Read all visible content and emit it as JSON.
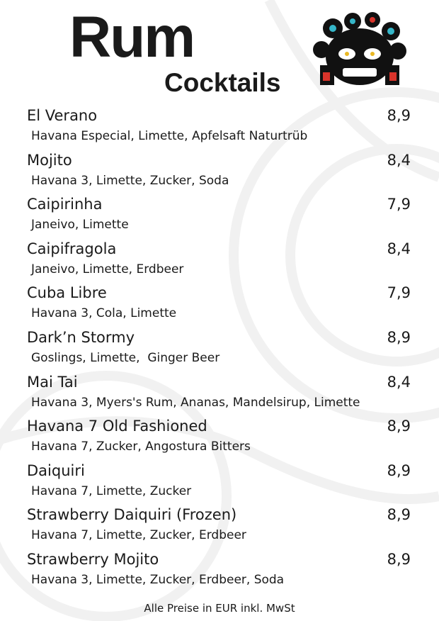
{
  "header": {
    "title": "Rum",
    "subtitle": "Cocktails"
  },
  "items": [
    {
      "name": "El Verano",
      "ingredients": "Havana Especial, Limette, Apfelsaft Naturtrüb",
      "price": "8,9"
    },
    {
      "name": "Mojito",
      "ingredients": "Havana 3, Limette, Zucker, Soda",
      "price": "8,4"
    },
    {
      "name": "Caipirinha",
      "ingredients": "Janeivo, Limette",
      "price": "7,9"
    },
    {
      "name": "Caipifragola",
      "ingredients": "Janeivo, Limette, Erdbeer",
      "price": "8,4"
    },
    {
      "name": "Cuba Libre",
      "ingredients": "Havana 3, Cola, Limette",
      "price": "7,9"
    },
    {
      "name": "Dark’n Stormy",
      "ingredients": "Goslings, Limette,  Ginger Beer",
      "price": "8,9"
    },
    {
      "name": "Mai Tai",
      "ingredients": "Havana 3, Myers's Rum, Ananas, Mandelsirup, Limette",
      "price": "8,4"
    },
    {
      "name": "Havana 7 Old Fashioned",
      "ingredients": "Havana 7, Zucker, Angostura Bitters",
      "price": "8,9"
    },
    {
      "name": "Daiquiri",
      "ingredients": "Havana 7, Limette, Zucker",
      "price": "8,9"
    },
    {
      "name": "Strawberry Daiquiri (Frozen)",
      "ingredients": "Havana 7, Limette, Zucker, Erdbeer",
      "price": "8,9"
    },
    {
      "name": "Strawberry Mojito",
      "ingredients": "Havana 3, Limette, Zucker, Erdbeer, Soda",
      "price": "8,9"
    }
  ],
  "footer": "Alle Preise in EUR inkl. MwSt"
}
